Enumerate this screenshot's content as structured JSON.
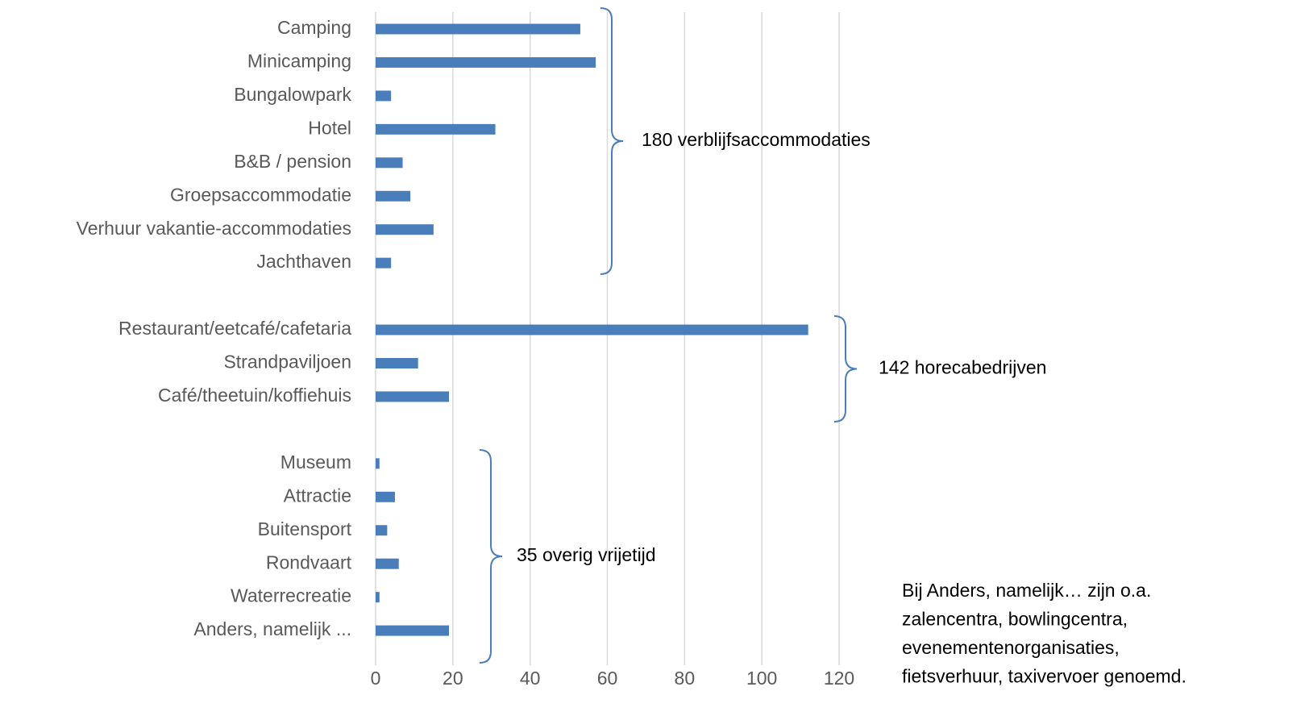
{
  "chart_data": {
    "type": "bar",
    "orientation": "horizontal",
    "categories": [
      "Camping",
      "Minicamping",
      "Bungalowpark",
      "Hotel",
      "B&B / pension",
      "Groepsaccommodatie",
      "Verhuur vakantie-accommodaties",
      "Jachthaven",
      null,
      "Restaurant/eetcafé/cafetaria",
      "Strandpaviljoen",
      "Café/theetuin/koffiehuis",
      null,
      "Museum",
      "Attractie",
      "Buitensport",
      "Rondvaart",
      "Waterrecreatie",
      "Anders, namelijk ..."
    ],
    "values": [
      53,
      57,
      4,
      31,
      7,
      9,
      15,
      4,
      null,
      112,
      11,
      19,
      null,
      1,
      5,
      3,
      6,
      1,
      19
    ],
    "color": "#4a7ebb",
    "xlim": [
      0,
      120
    ],
    "xticks": [
      0,
      20,
      40,
      60,
      80,
      100,
      120
    ],
    "grid": true,
    "annotations": [
      "180 verblijfsaccommodaties",
      "142 horecabedrijven",
      "35 overig vrijetijd"
    ],
    "note": [
      "Bij Anders, namelijk… zijn o.a.",
      "zalencentra, bowlingcentra,",
      "evenementenorganisaties,",
      "fietsverhuur, taxivervoer genoemd."
    ]
  }
}
